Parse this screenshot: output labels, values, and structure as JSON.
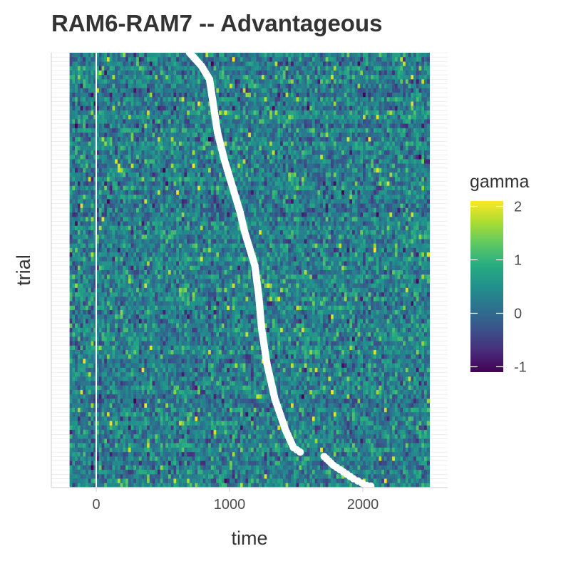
{
  "chart_data": {
    "type": "heatmap",
    "title": "RAM6-RAM7 -- Advantageous",
    "xlabel": "time",
    "ylabel": "trial",
    "xlim": [
      -330,
      2630
    ],
    "x_ticks": [
      0,
      1000,
      2000
    ],
    "time_range": [
      -200,
      2500
    ],
    "time_bin_ms": 20,
    "n_trials": 98,
    "y_tick_labels": "hidden",
    "grid": true,
    "reference_line_x": 0,
    "fill_variable": "gamma",
    "colorscale": "viridis",
    "fill_limits": [
      -1.1,
      2.1
    ],
    "legend": {
      "title": "gamma",
      "ticks": [
        2,
        1,
        0,
        -1
      ],
      "position": "right"
    },
    "response_times": {
      "description_visible": false,
      "series_name": "",
      "anchors_trial_top_to_bottom": [
        [
          0,
          700
        ],
        [
          3,
          790
        ],
        [
          6,
          850
        ],
        [
          12,
          880
        ],
        [
          18,
          910
        ],
        [
          24,
          960
        ],
        [
          30,
          1020
        ],
        [
          36,
          1080
        ],
        [
          40,
          1110
        ],
        [
          44,
          1150
        ],
        [
          48,
          1190
        ],
        [
          55,
          1220
        ],
        [
          62,
          1240
        ],
        [
          70,
          1280
        ],
        [
          78,
          1340
        ],
        [
          85,
          1420
        ],
        [
          89,
          1480
        ],
        [
          90,
          1530
        ],
        [
          91,
          1710
        ],
        [
          93,
          1780
        ],
        [
          95,
          1880
        ],
        [
          96,
          1930
        ],
        [
          98,
          2060
        ]
      ],
      "color": "#ffffff"
    }
  }
}
